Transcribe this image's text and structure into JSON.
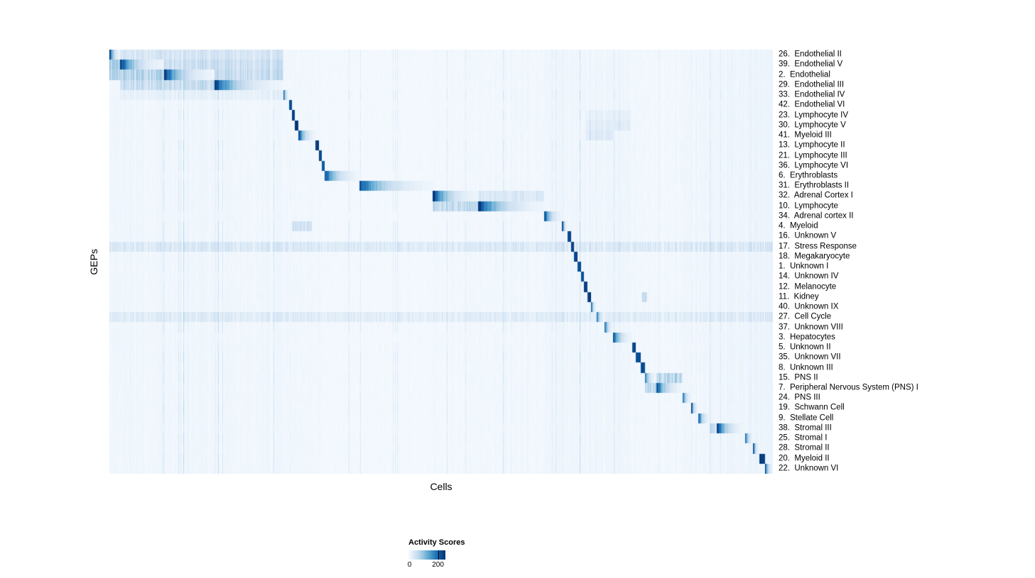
{
  "chart_data": {
    "type": "heatmap",
    "title": "",
    "xlabel": "Cells",
    "ylabel": "GEPs",
    "value_range": [
      0,
      200
    ],
    "colorbar": {
      "label": "Activity Scores",
      "ticks": [
        {
          "label": "0",
          "pos": 0.03,
          "line": false
        },
        {
          "label": "200",
          "pos": 0.8,
          "line": true
        }
      ],
      "colormap_stops": [
        "#f7fbff",
        "#deebf7",
        "#c6dbef",
        "#9ecae1",
        "#6baed6",
        "#4292c6",
        "#2171b5",
        "#08519c",
        "#08306b"
      ]
    },
    "rows": [
      "26.  Endothelial II",
      "39.  Endothelial V",
      "2.  Endothelial",
      "29.  Endothelial III",
      "33.  Endothelial IV",
      "42.  Endothelial VI",
      "23.  Lymphocyte IV",
      "30.  Lymphocyte V",
      "41.  Myeloid III",
      "13.  Lymphocyte II",
      "21.  Lymphocyte III",
      "36.  Lymphocyte VI",
      "6.  Erythroblasts",
      "31.  Erythroblasts II",
      "32.  Adrenal Cortex I",
      "10.  Lymphocyte",
      "34.  Adrenal cortex II",
      "4.  Myeloid",
      "16.  Unknown V",
      "17.  Stress Response",
      "18.  Megakaryocyte",
      "1.  Unknown I",
      "14.  Unknown IV",
      "12.  Melanocyte",
      "11.  Kidney",
      "40.  Unknown IX",
      "27.  Cell Cycle",
      "37.  Unknown VIII",
      "3.  Hepatocytes",
      "5.  Unknown II",
      "35.  Unknown VII",
      "8.  Unknown III",
      "15.  PNS II",
      "7.  Peripheral Nervous System (PNS) I",
      "24.  PNS III",
      "19.  Schwann Cell",
      "9.  Stellate Cell",
      "38.  Stromal III",
      "25.  Stromal I",
      "28.  Stromal II",
      "20.  Myeloid II",
      "22.  Unknown VI"
    ],
    "row_blocks": [
      [
        [
          0.0,
          0.016,
          200,
          1
        ],
        [
          0.016,
          0.262,
          30,
          0
        ]
      ],
      [
        [
          0.0,
          0.016,
          60,
          0
        ],
        [
          0.016,
          0.082,
          195,
          1
        ],
        [
          0.082,
          0.262,
          38,
          0
        ]
      ],
      [
        [
          0.0,
          0.016,
          55,
          0
        ],
        [
          0.016,
          0.082,
          55,
          0
        ],
        [
          0.082,
          0.158,
          195,
          1
        ],
        [
          0.158,
          0.262,
          42,
          0
        ]
      ],
      [
        [
          0.016,
          0.158,
          42,
          0
        ],
        [
          0.158,
          0.262,
          185,
          1
        ]
      ],
      [
        [
          0.016,
          0.262,
          14,
          0
        ],
        [
          0.262,
          0.27,
          195,
          1
        ]
      ],
      [
        [
          0.27,
          0.2748,
          185,
          0
        ]
      ],
      [
        [
          0.2748,
          0.2792,
          185,
          0
        ],
        [
          0.718,
          0.785,
          16,
          0
        ]
      ],
      [
        [
          0.2792,
          0.2845,
          195,
          0
        ],
        [
          0.718,
          0.785,
          22,
          0
        ]
      ],
      [
        [
          0.2845,
          0.31,
          195,
          1
        ],
        [
          0.718,
          0.76,
          26,
          0
        ]
      ],
      [
        [
          0.31,
          0.3148,
          195,
          0
        ]
      ],
      [
        [
          0.3148,
          0.3192,
          185,
          0
        ]
      ],
      [
        [
          0.3192,
          0.3235,
          175,
          0
        ]
      ],
      [
        [
          0.3235,
          0.376,
          195,
          1
        ]
      ],
      [
        [
          0.376,
          0.487,
          185,
          1
        ]
      ],
      [
        [
          0.487,
          0.555,
          200,
          1
        ],
        [
          0.555,
          0.655,
          26,
          0
        ]
      ],
      [
        [
          0.487,
          0.555,
          48,
          0
        ],
        [
          0.555,
          0.655,
          200,
          1
        ]
      ],
      [
        [
          0.655,
          0.682,
          200,
          1
        ]
      ],
      [
        [
          0.275,
          0.305,
          32,
          0
        ],
        [
          0.682,
          0.69,
          200,
          1
        ]
      ],
      [
        [
          0.69,
          0.6952,
          190,
          0
        ]
      ],
      [
        [
          0.6952,
          0.7002,
          190,
          0
        ]
      ],
      [
        [
          0.7002,
          0.7052,
          190,
          0
        ]
      ],
      [
        [
          0.7052,
          0.7102,
          180,
          0
        ]
      ],
      [
        [
          0.7102,
          0.7152,
          180,
          0
        ]
      ],
      [
        [
          0.7152,
          0.7202,
          190,
          0
        ]
      ],
      [
        [
          0.7202,
          0.7258,
          190,
          0
        ],
        [
          0.802,
          0.81,
          45,
          0
        ]
      ],
      [
        [
          0.7258,
          0.7338,
          190,
          1
        ]
      ],
      [
        [
          0.7338,
          0.746,
          190,
          1
        ]
      ],
      [
        [
          0.746,
          0.7588,
          190,
          1
        ]
      ],
      [
        [
          0.7588,
          0.787,
          190,
          1
        ]
      ],
      [
        [
          0.787,
          0.7928,
          180,
          0
        ]
      ],
      [
        [
          0.7928,
          0.8,
          180,
          0
        ]
      ],
      [
        [
          0.8,
          0.8068,
          180,
          0
        ]
      ],
      [
        [
          0.8068,
          0.8238,
          155,
          1
        ],
        [
          0.8238,
          0.863,
          55,
          0
        ]
      ],
      [
        [
          0.8068,
          0.8238,
          50,
          0
        ],
        [
          0.8238,
          0.863,
          200,
          1
        ]
      ],
      [
        [
          0.863,
          0.8768,
          195,
          1
        ]
      ],
      [
        [
          0.8768,
          0.8872,
          190,
          1
        ]
      ],
      [
        [
          0.8872,
          0.904,
          200,
          1
        ]
      ],
      [
        [
          0.904,
          0.915,
          40,
          0
        ],
        [
          0.915,
          0.958,
          195,
          1
        ]
      ],
      [
        [
          0.958,
          0.9698,
          190,
          1
        ]
      ],
      [
        [
          0.9698,
          0.9792,
          200,
          1
        ]
      ],
      [
        [
          0.9792,
          0.9876,
          190,
          0
        ]
      ],
      [
        [
          0.9876,
          1.0,
          200,
          1
        ]
      ]
    ],
    "diffuse_rows": {
      "19": 20,
      "26": 16
    },
    "column_bands": [
      [
        0.0,
        0.262,
        5
      ],
      [
        0.262,
        0.323,
        4
      ],
      [
        0.323,
        0.487,
        3
      ],
      [
        0.487,
        0.655,
        4
      ],
      [
        0.655,
        0.786,
        7
      ],
      [
        0.786,
        0.86,
        4
      ],
      [
        0.86,
        0.93,
        6
      ],
      [
        0.93,
        1.001,
        8
      ]
    ]
  }
}
